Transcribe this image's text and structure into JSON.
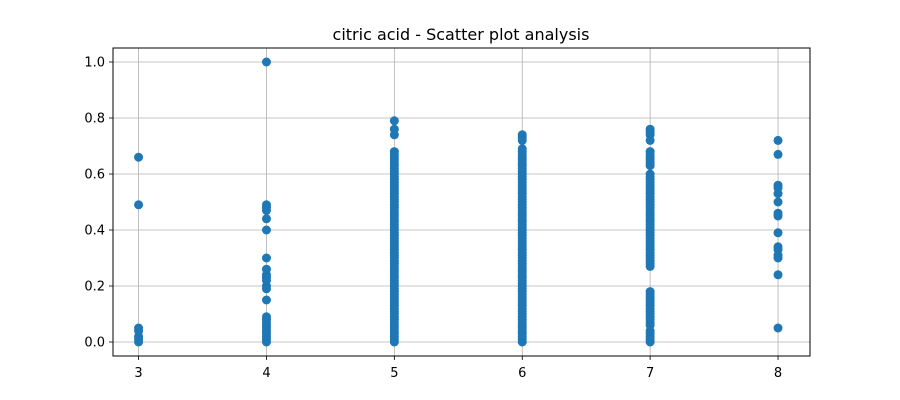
{
  "chart_data": {
    "type": "scatter",
    "title": "citric acid - Scatter plot analysis",
    "xlabel": "",
    "ylabel": "",
    "xlim": [
      2.8,
      8.25
    ],
    "ylim": [
      -0.05,
      1.05
    ],
    "xticks": [
      3,
      4,
      5,
      6,
      7,
      8
    ],
    "yticks": [
      0.0,
      0.2,
      0.4,
      0.6,
      0.8,
      1.0
    ],
    "xtick_labels": [
      "3",
      "4",
      "5",
      "6",
      "7",
      "8"
    ],
    "ytick_labels": [
      "0.0",
      "0.2",
      "0.4",
      "0.6",
      "0.8",
      "1.0"
    ],
    "grid": true,
    "marker_color": "#1f77b4",
    "series": [
      {
        "points": [
          [
            3,
            0.66
          ],
          [
            3,
            0.49
          ],
          [
            3,
            0.05
          ],
          [
            3,
            0.04
          ],
          [
            3,
            0.02
          ],
          [
            3,
            0.01
          ],
          [
            3,
            0.0
          ],
          [
            4,
            1.0
          ],
          [
            4,
            0.49
          ],
          [
            4,
            0.48
          ],
          [
            4,
            0.47
          ],
          [
            4,
            0.44
          ],
          [
            4,
            0.4
          ],
          [
            4,
            0.3
          ],
          [
            4,
            0.26
          ],
          [
            4,
            0.24
          ],
          [
            4,
            0.23
          ],
          [
            4,
            0.22
          ],
          [
            4,
            0.2
          ],
          [
            4,
            0.19
          ],
          [
            4,
            0.15
          ],
          [
            4,
            0.09
          ],
          [
            4,
            0.08
          ],
          [
            4,
            0.07
          ],
          [
            4,
            0.06
          ],
          [
            4,
            0.05
          ],
          [
            4,
            0.04
          ],
          [
            4,
            0.03
          ],
          [
            4,
            0.02
          ],
          [
            4,
            0.01
          ],
          [
            4,
            0.0
          ],
          [
            5,
            0.79
          ],
          [
            5,
            0.76
          ],
          [
            5,
            0.74
          ],
          [
            5,
            0.68
          ],
          [
            5,
            0.67
          ],
          [
            5,
            0.66
          ],
          [
            5,
            0.65
          ],
          [
            5,
            0.64
          ],
          [
            5,
            0.63
          ],
          [
            5,
            0.62
          ],
          [
            5,
            0.61
          ],
          [
            5,
            0.6
          ],
          [
            5,
            0.59
          ],
          [
            5,
            0.58
          ],
          [
            5,
            0.57
          ],
          [
            5,
            0.56
          ],
          [
            5,
            0.55
          ],
          [
            5,
            0.54
          ],
          [
            5,
            0.53
          ],
          [
            5,
            0.52
          ],
          [
            5,
            0.51
          ],
          [
            5,
            0.5
          ],
          [
            5,
            0.49
          ],
          [
            5,
            0.48
          ],
          [
            5,
            0.47
          ],
          [
            5,
            0.46
          ],
          [
            5,
            0.45
          ],
          [
            5,
            0.44
          ],
          [
            5,
            0.43
          ],
          [
            5,
            0.42
          ],
          [
            5,
            0.41
          ],
          [
            5,
            0.4
          ],
          [
            5,
            0.39
          ],
          [
            5,
            0.38
          ],
          [
            5,
            0.37
          ],
          [
            5,
            0.36
          ],
          [
            5,
            0.35
          ],
          [
            5,
            0.34
          ],
          [
            5,
            0.33
          ],
          [
            5,
            0.32
          ],
          [
            5,
            0.31
          ],
          [
            5,
            0.3
          ],
          [
            5,
            0.29
          ],
          [
            5,
            0.28
          ],
          [
            5,
            0.27
          ],
          [
            5,
            0.26
          ],
          [
            5,
            0.25
          ],
          [
            5,
            0.24
          ],
          [
            5,
            0.23
          ],
          [
            5,
            0.22
          ],
          [
            5,
            0.21
          ],
          [
            5,
            0.2
          ],
          [
            5,
            0.19
          ],
          [
            5,
            0.18
          ],
          [
            5,
            0.17
          ],
          [
            5,
            0.16
          ],
          [
            5,
            0.15
          ],
          [
            5,
            0.14
          ],
          [
            5,
            0.13
          ],
          [
            5,
            0.12
          ],
          [
            5,
            0.11
          ],
          [
            5,
            0.1
          ],
          [
            5,
            0.09
          ],
          [
            5,
            0.08
          ],
          [
            5,
            0.07
          ],
          [
            5,
            0.06
          ],
          [
            5,
            0.05
          ],
          [
            5,
            0.04
          ],
          [
            5,
            0.03
          ],
          [
            5,
            0.02
          ],
          [
            5,
            0.01
          ],
          [
            5,
            0.0
          ],
          [
            6,
            0.74
          ],
          [
            6,
            0.73
          ],
          [
            6,
            0.72
          ],
          [
            6,
            0.69
          ],
          [
            6,
            0.68
          ],
          [
            6,
            0.67
          ],
          [
            6,
            0.66
          ],
          [
            6,
            0.65
          ],
          [
            6,
            0.64
          ],
          [
            6,
            0.63
          ],
          [
            6,
            0.62
          ],
          [
            6,
            0.61
          ],
          [
            6,
            0.6
          ],
          [
            6,
            0.59
          ],
          [
            6,
            0.58
          ],
          [
            6,
            0.57
          ],
          [
            6,
            0.56
          ],
          [
            6,
            0.55
          ],
          [
            6,
            0.54
          ],
          [
            6,
            0.53
          ],
          [
            6,
            0.52
          ],
          [
            6,
            0.51
          ],
          [
            6,
            0.5
          ],
          [
            6,
            0.49
          ],
          [
            6,
            0.48
          ],
          [
            6,
            0.47
          ],
          [
            6,
            0.46
          ],
          [
            6,
            0.45
          ],
          [
            6,
            0.44
          ],
          [
            6,
            0.43
          ],
          [
            6,
            0.42
          ],
          [
            6,
            0.41
          ],
          [
            6,
            0.4
          ],
          [
            6,
            0.39
          ],
          [
            6,
            0.38
          ],
          [
            6,
            0.37
          ],
          [
            6,
            0.36
          ],
          [
            6,
            0.35
          ],
          [
            6,
            0.34
          ],
          [
            6,
            0.33
          ],
          [
            6,
            0.32
          ],
          [
            6,
            0.31
          ],
          [
            6,
            0.3
          ],
          [
            6,
            0.29
          ],
          [
            6,
            0.28
          ],
          [
            6,
            0.27
          ],
          [
            6,
            0.26
          ],
          [
            6,
            0.25
          ],
          [
            6,
            0.24
          ],
          [
            6,
            0.23
          ],
          [
            6,
            0.22
          ],
          [
            6,
            0.21
          ],
          [
            6,
            0.2
          ],
          [
            6,
            0.19
          ],
          [
            6,
            0.18
          ],
          [
            6,
            0.17
          ],
          [
            6,
            0.16
          ],
          [
            6,
            0.15
          ],
          [
            6,
            0.14
          ],
          [
            6,
            0.13
          ],
          [
            6,
            0.12
          ],
          [
            6,
            0.11
          ],
          [
            6,
            0.1
          ],
          [
            6,
            0.09
          ],
          [
            6,
            0.08
          ],
          [
            6,
            0.07
          ],
          [
            6,
            0.06
          ],
          [
            6,
            0.05
          ],
          [
            6,
            0.04
          ],
          [
            6,
            0.03
          ],
          [
            6,
            0.02
          ],
          [
            6,
            0.01
          ],
          [
            6,
            0.0
          ],
          [
            7,
            0.76
          ],
          [
            7,
            0.75
          ],
          [
            7,
            0.74
          ],
          [
            7,
            0.72
          ],
          [
            7,
            0.68
          ],
          [
            7,
            0.67
          ],
          [
            7,
            0.66
          ],
          [
            7,
            0.65
          ],
          [
            7,
            0.64
          ],
          [
            7,
            0.63
          ],
          [
            7,
            0.6
          ],
          [
            7,
            0.59
          ],
          [
            7,
            0.58
          ],
          [
            7,
            0.57
          ],
          [
            7,
            0.56
          ],
          [
            7,
            0.55
          ],
          [
            7,
            0.54
          ],
          [
            7,
            0.53
          ],
          [
            7,
            0.52
          ],
          [
            7,
            0.51
          ],
          [
            7,
            0.5
          ],
          [
            7,
            0.49
          ],
          [
            7,
            0.48
          ],
          [
            7,
            0.47
          ],
          [
            7,
            0.46
          ],
          [
            7,
            0.45
          ],
          [
            7,
            0.44
          ],
          [
            7,
            0.43
          ],
          [
            7,
            0.42
          ],
          [
            7,
            0.41
          ],
          [
            7,
            0.4
          ],
          [
            7,
            0.39
          ],
          [
            7,
            0.38
          ],
          [
            7,
            0.37
          ],
          [
            7,
            0.36
          ],
          [
            7,
            0.35
          ],
          [
            7,
            0.34
          ],
          [
            7,
            0.33
          ],
          [
            7,
            0.32
          ],
          [
            7,
            0.31
          ],
          [
            7,
            0.3
          ],
          [
            7,
            0.29
          ],
          [
            7,
            0.28
          ],
          [
            7,
            0.27
          ],
          [
            7,
            0.18
          ],
          [
            7,
            0.17
          ],
          [
            7,
            0.16
          ],
          [
            7,
            0.15
          ],
          [
            7,
            0.14
          ],
          [
            7,
            0.13
          ],
          [
            7,
            0.12
          ],
          [
            7,
            0.11
          ],
          [
            7,
            0.1
          ],
          [
            7,
            0.09
          ],
          [
            7,
            0.08
          ],
          [
            7,
            0.07
          ],
          [
            7,
            0.06
          ],
          [
            7,
            0.04
          ],
          [
            7,
            0.03
          ],
          [
            7,
            0.02
          ],
          [
            7,
            0.01
          ],
          [
            7,
            0.0
          ],
          [
            8,
            0.72
          ],
          [
            8,
            0.67
          ],
          [
            8,
            0.56
          ],
          [
            8,
            0.55
          ],
          [
            8,
            0.53
          ],
          [
            8,
            0.5
          ],
          [
            8,
            0.46
          ],
          [
            8,
            0.45
          ],
          [
            8,
            0.39
          ],
          [
            8,
            0.34
          ],
          [
            8,
            0.33
          ],
          [
            8,
            0.31
          ],
          [
            8,
            0.3
          ],
          [
            8,
            0.24
          ],
          [
            8,
            0.05
          ]
        ]
      }
    ]
  }
}
